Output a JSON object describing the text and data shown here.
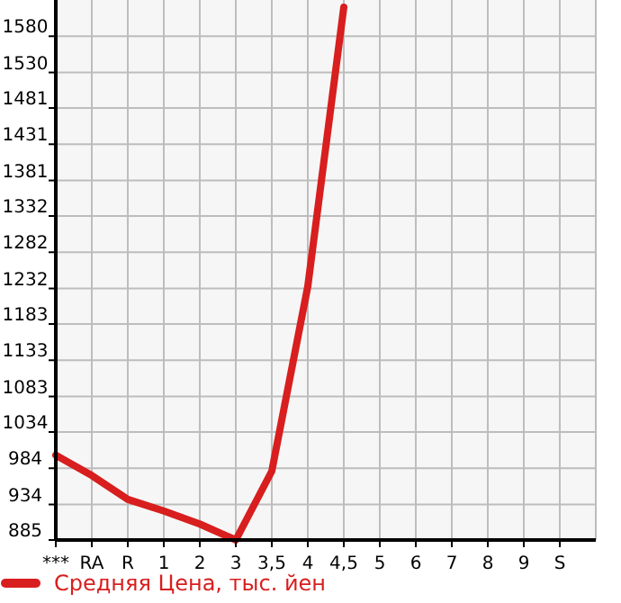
{
  "chart_data": {
    "type": "line",
    "categories": [
      "***",
      "RA",
      "R",
      "1",
      "2",
      "3",
      "3,5",
      "4",
      "4,5",
      "5",
      "6",
      "7",
      "8",
      "9",
      "S"
    ],
    "series": [
      {
        "name": "Средняя Цена, тыс. йен",
        "color": "#d81e1e",
        "values": [
          1002,
          974,
          941,
          925,
          907,
          885,
          980,
          1235,
          1620,
          null,
          null,
          null,
          null,
          null,
          null
        ]
      }
    ],
    "ylim": [
      885,
      1630
    ],
    "yticks": [
      885,
      934,
      984,
      1034,
      1083,
      1133,
      1183,
      1232,
      1282,
      1332,
      1381,
      1431,
      1481,
      1530,
      1580
    ],
    "grid": true,
    "legend": "bottom",
    "marker": "none",
    "line_style": "solid"
  }
}
